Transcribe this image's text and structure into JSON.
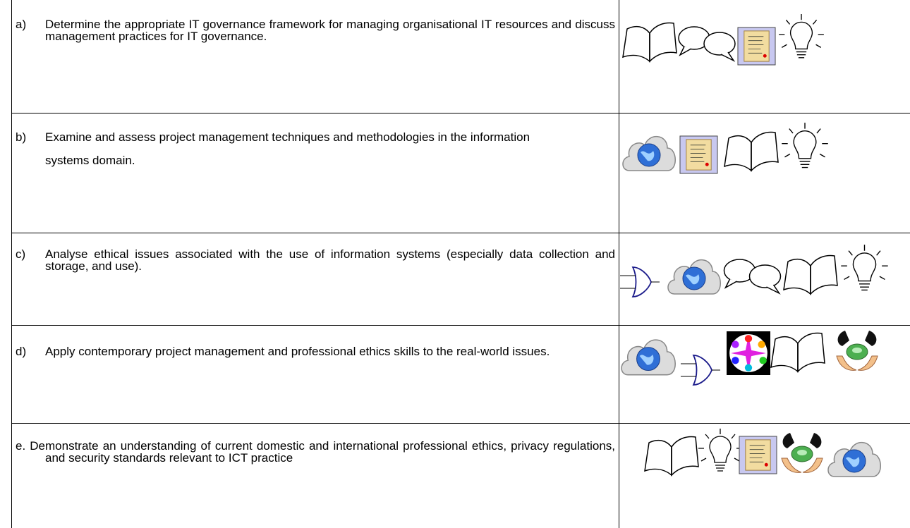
{
  "table": {
    "rows": [
      {
        "label": "a)",
        "text": "Determine the appropriate IT governance framework for managing organisational IT resources and discuss management practices for IT governance."
      },
      {
        "label": "b)",
        "text": "Examine and assess project management techniques and methodologies in the information systems domain."
      },
      {
        "label": "c)",
        "text": "Analyse ethical issues associated with the use of information systems (especially data collection and storage, and use)."
      },
      {
        "label": "d)",
        "text": "Apply contemporary project management and professional ethics skills to the real-world issues."
      },
      {
        "text": "e. Demonstrate an understanding of current domestic and international professional ethics, privacy regulations, and security standards relevant to ICT practice"
      }
    ]
  }
}
